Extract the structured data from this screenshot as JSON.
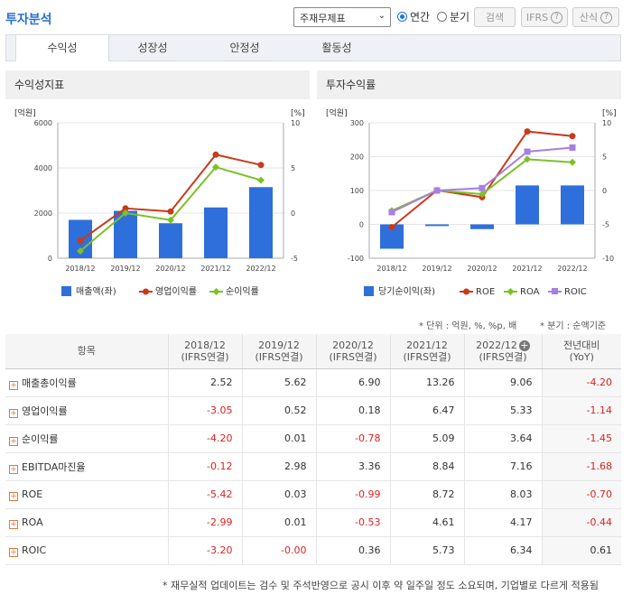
{
  "header": {
    "title": "투자분석",
    "select_value": "주재무제표",
    "radio_annual": "연간",
    "radio_quarter": "분기",
    "search_btn": "검색",
    "ifrs_btn": "IFRS",
    "calc_btn": "산식"
  },
  "tabs": [
    "수익성",
    "성장성",
    "안정성",
    "활동성"
  ],
  "panels": {
    "left_title": "수익성지표",
    "right_title": "투자수익률"
  },
  "units": {
    "left": "* 단위 : 억원, %, %p, 배",
    "right": "* 분기 : 순액기준"
  },
  "chart_data": [
    {
      "type": "bar",
      "title": "수익성지표",
      "y_left_label": "[억원]",
      "y_right_label": "[%]",
      "categories": [
        "2018/12",
        "2019/12",
        "2020/12",
        "2021/12",
        "2022/12"
      ],
      "y_left_ticks": [
        "0",
        "2000",
        "4000",
        "6000"
      ],
      "y_right_ticks": [
        "-5",
        "0",
        "5",
        "10"
      ],
      "ylim_left": [
        0,
        6000
      ],
      "ylim_right": [
        -5,
        10
      ],
      "series": [
        {
          "name": "매출액(좌)",
          "type": "bar",
          "axis": "left",
          "color": "#2f6fdb",
          "values": [
            1700,
            2100,
            1550,
            2250,
            3150
          ]
        },
        {
          "name": "영업이익률",
          "type": "line",
          "axis": "right",
          "color": "#c93a1a",
          "values": [
            -3.05,
            0.52,
            0.18,
            6.47,
            5.33
          ]
        },
        {
          "name": "순이익률",
          "type": "line",
          "axis": "right",
          "color": "#7cc128",
          "values": [
            -4.2,
            0.01,
            -0.78,
            5.09,
            3.64
          ]
        }
      ]
    },
    {
      "type": "bar",
      "title": "투자수익률",
      "y_left_label": "[억원]",
      "y_right_label": "[%]",
      "categories": [
        "2018/12",
        "2019/12",
        "2020/12",
        "2021/12",
        "2022/12"
      ],
      "y_left_ticks": [
        "-100",
        "0",
        "100",
        "200",
        "300"
      ],
      "y_right_ticks": [
        "-10",
        "-5",
        "0",
        "5",
        "10"
      ],
      "ylim_left": [
        -100,
        300
      ],
      "ylim_right": [
        -10,
        10
      ],
      "series": [
        {
          "name": "당기순이익(좌)",
          "type": "bar",
          "axis": "left",
          "color": "#2f6fdb",
          "values": [
            -72,
            -5,
            -14,
            115,
            115
          ]
        },
        {
          "name": "ROE",
          "type": "line",
          "axis": "right",
          "color": "#c93a1a",
          "values": [
            -5.42,
            0.03,
            -0.99,
            8.72,
            8.03
          ]
        },
        {
          "name": "ROA",
          "type": "line",
          "axis": "right",
          "color": "#7cc128",
          "values": [
            -2.99,
            0.01,
            -0.53,
            4.61,
            4.17
          ]
        },
        {
          "name": "ROIC",
          "type": "line",
          "axis": "right",
          "color": "#a77fe0",
          "values": [
            -3.2,
            0.0,
            0.36,
            5.73,
            6.34
          ]
        }
      ]
    }
  ],
  "table": {
    "headers": [
      {
        "line1": "항목",
        "line2": ""
      },
      {
        "line1": "2018/12",
        "line2": "(IFRS연결)"
      },
      {
        "line1": "2019/12",
        "line2": "(IFRS연결)"
      },
      {
        "line1": "2020/12",
        "line2": "(IFRS연결)"
      },
      {
        "line1": "2021/12",
        "line2": "(IFRS연결)"
      },
      {
        "line1": "2022/12",
        "line2": "(IFRS연결)"
      },
      {
        "line1": "전년대비",
        "line2": "(YoY)"
      }
    ],
    "rows": [
      {
        "label": "매출총이익률",
        "values": [
          "2.52",
          "5.62",
          "6.90",
          "13.26",
          "9.06",
          "-4.20"
        ]
      },
      {
        "label": "영업이익률",
        "values": [
          "-3.05",
          "0.52",
          "0.18",
          "6.47",
          "5.33",
          "-1.14"
        ]
      },
      {
        "label": "순이익률",
        "values": [
          "-4.20",
          "0.01",
          "-0.78",
          "5.09",
          "3.64",
          "-1.45"
        ]
      },
      {
        "label": "EBITDA마진율",
        "values": [
          "-0.12",
          "2.98",
          "3.36",
          "8.84",
          "7.16",
          "-1.68"
        ]
      },
      {
        "label": "ROE",
        "values": [
          "-5.42",
          "0.03",
          "-0.99",
          "8.72",
          "8.03",
          "-0.70"
        ]
      },
      {
        "label": "ROA",
        "values": [
          "-2.99",
          "0.01",
          "-0.53",
          "4.61",
          "4.17",
          "-0.44"
        ]
      },
      {
        "label": "ROIC",
        "values": [
          "-3.20",
          "-0.00",
          "0.36",
          "5.73",
          "6.34",
          "0.61"
        ]
      }
    ]
  },
  "footnote": "* 재무실적 업데이트는 검수 및 주석반영으로 공시 이후 약 일주일 정도 소요되며, 기업별로 다르게 적용됨"
}
